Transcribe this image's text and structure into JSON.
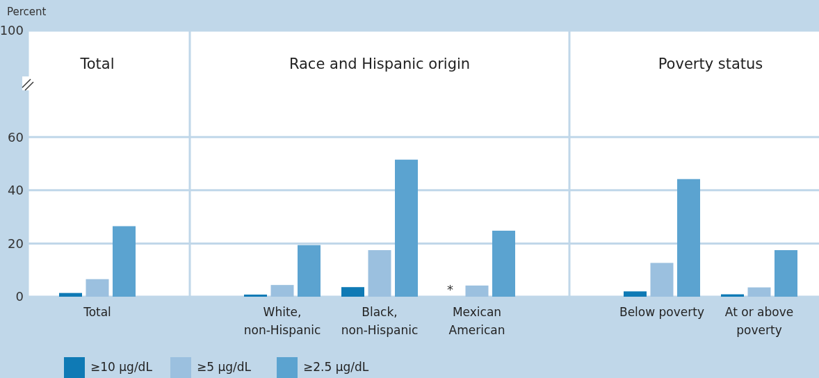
{
  "chart_data": {
    "type": "bar",
    "ylabel": "Percent",
    "categories": [
      "Total",
      "White, non-Hispanic",
      "Black, non-Hispanic",
      "Mexican American",
      "Below poverty",
      "At or above poverty"
    ],
    "series": [
      {
        "name": "≥10 μg/dL",
        "color": "#0f7ab5",
        "values": [
          1.4,
          0.8,
          3.6,
          null,
          2.0,
          0.9
        ],
        "value_labels": [
          null,
          null,
          null,
          "*",
          null,
          null
        ]
      },
      {
        "name": "≥5 μg/dL",
        "color": "#9bc0df",
        "values": [
          6.6,
          4.4,
          17.5,
          4.2,
          12.7,
          3.5
        ]
      },
      {
        "name": "≥2.5 μg/dL",
        "color": "#5ba3d0",
        "values": [
          26.5,
          19.4,
          51.5,
          24.8,
          44.2,
          17.5
        ]
      }
    ],
    "ylim": [
      0,
      100
    ],
    "yticks": [
      0,
      20,
      40,
      60,
      100
    ],
    "grid": "y",
    "legend": "bottom left",
    "annotations": [
      "Total",
      "Race and Hispanic origin",
      "Poverty status"
    ]
  }
}
